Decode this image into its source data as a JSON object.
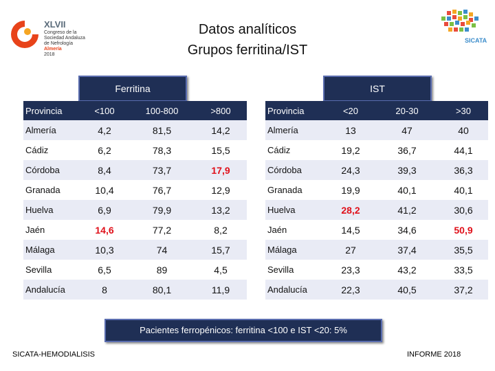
{
  "logo_left": {
    "roman": "XLVII",
    "lines": [
      "Congreso de la",
      "Sociedad Andaluza",
      "de Nefrología",
      "Almería",
      "2018"
    ]
  },
  "logo_right": {
    "name": "SICATA"
  },
  "title": {
    "line1": "Datos analíticos",
    "line2": "Grupos ferritina/IST"
  },
  "ferritina": {
    "header": "Ferritina",
    "columns": [
      "Provincia",
      "<100",
      "100-800",
      ">800"
    ],
    "rows": [
      {
        "p": "Almería",
        "a": "4,2",
        "b": "81,5",
        "c": "14,2"
      },
      {
        "p": "Cádiz",
        "a": "6,2",
        "b": "78,3",
        "c": "15,5"
      },
      {
        "p": "Córdoba",
        "a": "8,4",
        "b": "73,7",
        "c": "17,9"
      },
      {
        "p": "Granada",
        "a": "10,4",
        "b": "76,7",
        "c": "12,9"
      },
      {
        "p": "Huelva",
        "a": "6,9",
        "b": "79,9",
        "c": "13,2"
      },
      {
        "p": "Jaén",
        "a": "14,6",
        "b": "77,2",
        "c": "8,2"
      },
      {
        "p": "Málaga",
        "a": "10,3",
        "b": "74",
        "c": "15,7"
      },
      {
        "p": "Sevilla",
        "a": "6,5",
        "b": "89",
        "c": "4,5"
      },
      {
        "p": "Andalucía",
        "a": "8",
        "b": "80,1",
        "c": "11,9"
      }
    ]
  },
  "ist": {
    "header": "IST",
    "columns": [
      "Provincia",
      "<20",
      "20-30",
      ">30"
    ],
    "rows": [
      {
        "p": "Almería",
        "a": "13",
        "b": "47",
        "c": "40"
      },
      {
        "p": "Cádiz",
        "a": "19,2",
        "b": "36,7",
        "c": "44,1"
      },
      {
        "p": "Córdoba",
        "a": "24,3",
        "b": "39,3",
        "c": "36,3"
      },
      {
        "p": "Granada",
        "a": "19,9",
        "b": "40,1",
        "c": "40,1"
      },
      {
        "p": "Huelva",
        "a": "28,2",
        "b": "41,2",
        "c": "30,6"
      },
      {
        "p": "Jaén",
        "a": "14,5",
        "b": "34,6",
        "c": "50,9"
      },
      {
        "p": "Málaga",
        "a": "27",
        "b": "37,4",
        "c": "35,5"
      },
      {
        "p": "Sevilla",
        "a": "23,3",
        "b": "43,2",
        "c": "33,5"
      },
      {
        "p": "Andalucía",
        "a": "22,3",
        "b": "40,5",
        "c": "37,2"
      }
    ]
  },
  "highlight_color": "#e0101a",
  "footer": {
    "note": "Pacientes ferropénicos: ferritina <100 e IST <20: 5%",
    "left": "SICATA-HEMODIALISIS",
    "right": "INFORME 2018"
  }
}
